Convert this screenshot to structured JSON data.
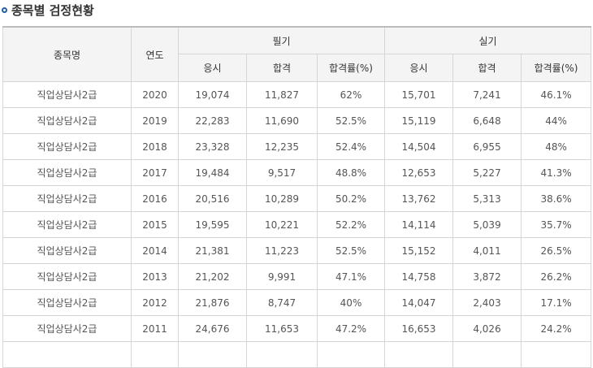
{
  "section_title": "종목별 검정현황",
  "headers": {
    "item_name": "종목명",
    "year": "연도",
    "written": "필기",
    "practical": "실기",
    "sub": [
      "응시",
      "합격",
      "합격률(%)",
      "응시",
      "합격",
      "합격률(%)"
    ]
  },
  "rows": [
    [
      "직업상담사2급",
      "2020",
      "19,074",
      "11,827",
      "62%",
      "15,701",
      "7,241",
      "46.1%"
    ],
    [
      "직업상담사2급",
      "2019",
      "22,283",
      "11,690",
      "52.5%",
      "15,119",
      "6,648",
      "44%"
    ],
    [
      "직업상담사2급",
      "2018",
      "23,328",
      "12,235",
      "52.4%",
      "14,504",
      "6,955",
      "48%"
    ],
    [
      "직업상담사2급",
      "2017",
      "19,484",
      "9,517",
      "48.8%",
      "12,653",
      "5,227",
      "41.3%"
    ],
    [
      "직업상담사2급",
      "2016",
      "20,516",
      "10,289",
      "50.2%",
      "13,762",
      "5,313",
      "38.6%"
    ],
    [
      "직업상담사2급",
      "2015",
      "19,595",
      "10,221",
      "52.2%",
      "14,114",
      "5,039",
      "35.7%"
    ],
    [
      "직업상담사2급",
      "2014",
      "21,381",
      "11,223",
      "52.5%",
      "15,152",
      "4,011",
      "26.5%"
    ],
    [
      "직업상담사2급",
      "2013",
      "21,202",
      "9,991",
      "47.1%",
      "14,758",
      "3,872",
      "26.2%"
    ],
    [
      "직업상담사2급",
      "2012",
      "21,876",
      "8,747",
      "40%",
      "14,047",
      "2,403",
      "17.1%"
    ],
    [
      "직업상담사2급",
      "2011",
      "24,676",
      "11,653",
      "47.2%",
      "16,653",
      "4,026",
      "24.2%"
    ],
    [
      "",
      "",
      "",
      "",
      "",
      "",
      "",
      ""
    ]
  ]
}
